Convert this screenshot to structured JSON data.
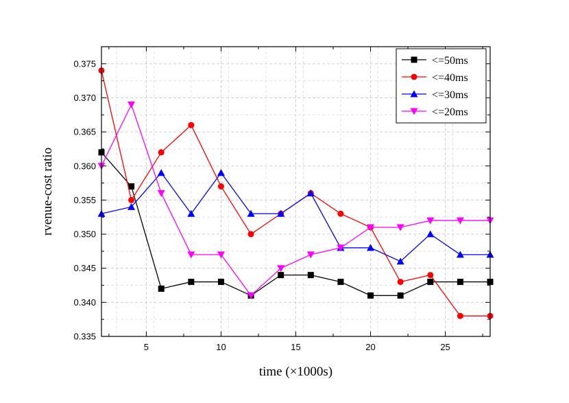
{
  "chart_data": {
    "type": "line",
    "title": "",
    "xlabel": "time (×1000s)",
    "ylabel": "rvenue-cost ratio",
    "xlim": [
      2,
      28
    ],
    "ylim": [
      0.335,
      0.3775
    ],
    "xticks": [
      5,
      10,
      15,
      20,
      25
    ],
    "xtick_labels": [
      "5",
      "10",
      "15",
      "20",
      "25"
    ],
    "yticks": [
      0.335,
      0.34,
      0.345,
      0.35,
      0.355,
      0.36,
      0.365,
      0.37,
      0.375
    ],
    "ytick_labels": [
      "0.335",
      "0.340",
      "0.345",
      "0.350",
      "0.355",
      "0.360",
      "0.365",
      "0.370",
      "0.375"
    ],
    "grid": true,
    "legend_position": "top-right",
    "x": [
      2,
      4,
      6,
      8,
      10,
      12,
      14,
      16,
      18,
      20,
      22,
      24,
      26,
      28
    ],
    "series": [
      {
        "name": "<=50ms",
        "color": "#000000",
        "marker": "square",
        "values": [
          0.362,
          0.357,
          0.342,
          0.343,
          0.343,
          0.341,
          0.344,
          0.344,
          0.343,
          0.341,
          0.341,
          0.343,
          0.343,
          0.343
        ]
      },
      {
        "name": "<=40ms",
        "color": "#ff0000",
        "marker": "circle",
        "values": [
          0.374,
          0.355,
          0.362,
          0.366,
          0.357,
          0.35,
          0.353,
          0.356,
          0.353,
          0.351,
          0.343,
          0.344,
          0.338,
          0.338
        ]
      },
      {
        "name": "<=30ms",
        "color": "#0000ff",
        "marker": "triangle-up",
        "values": [
          0.353,
          0.354,
          0.359,
          0.353,
          0.359,
          0.353,
          0.353,
          0.356,
          0.348,
          0.348,
          0.346,
          0.35,
          0.347,
          0.347
        ]
      },
      {
        "name": "<=20ms",
        "color": "#ff00ff",
        "marker": "triangle-down",
        "values": [
          0.36,
          0.369,
          0.356,
          0.347,
          0.347,
          0.341,
          0.345,
          0.347,
          0.348,
          0.351,
          0.351,
          0.352,
          0.352,
          0.352
        ]
      }
    ]
  }
}
